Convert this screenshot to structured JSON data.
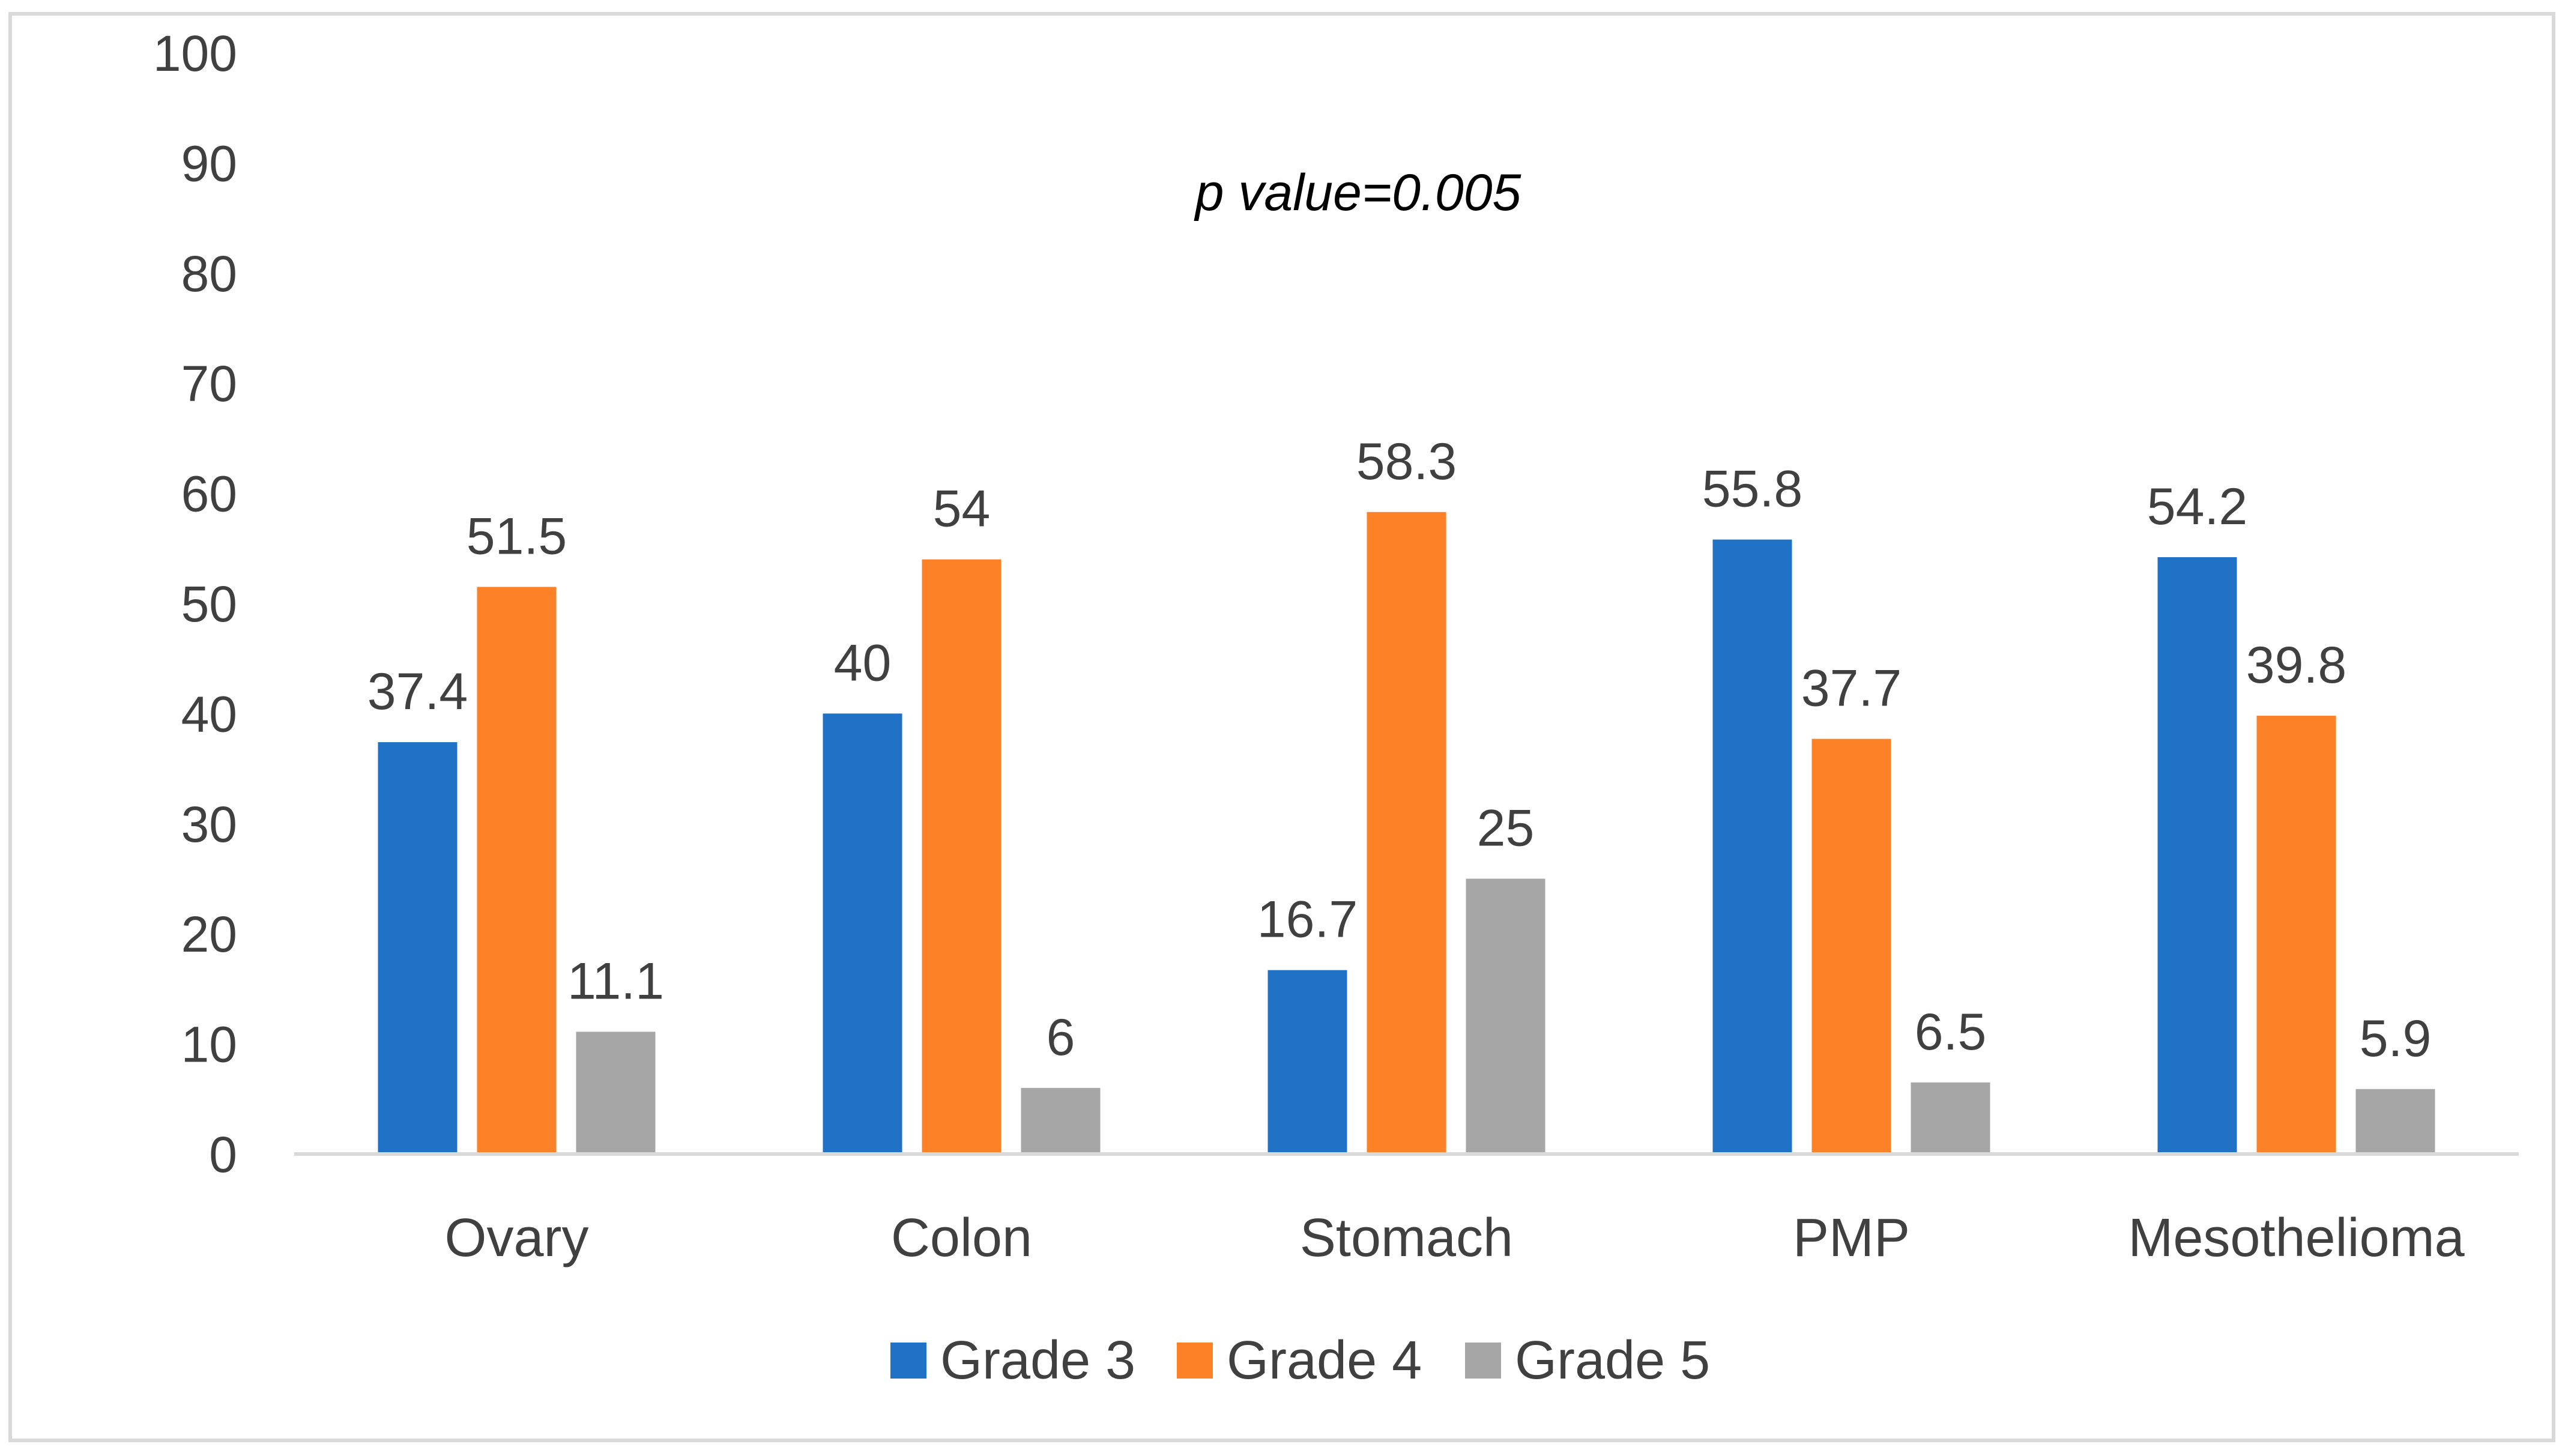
{
  "chart_data": {
    "type": "bar",
    "title": "",
    "xlabel": "",
    "ylabel": "",
    "ylim": [
      0,
      100
    ],
    "ytick_step": 10,
    "grid": false,
    "legend_position": "bottom",
    "annotation": "p value=0.005",
    "categories": [
      "Ovary",
      "Colon",
      "Stomach",
      "PMP",
      "Mesothelioma"
    ],
    "series": [
      {
        "name": "Grade 3",
        "color": "#1f72c6",
        "values": [
          37.4,
          40,
          16.7,
          55.8,
          54.2
        ],
        "labels": [
          "37.4",
          "40",
          "16.7",
          "55.8",
          "54.2"
        ]
      },
      {
        "name": "Grade 4",
        "color": "#fd8126",
        "values": [
          51.5,
          54,
          58.3,
          37.7,
          39.8
        ],
        "labels": [
          "51.5",
          "54",
          "58.3",
          "37.7",
          "39.8"
        ]
      },
      {
        "name": "Grade 5",
        "color": "#a6a6a6",
        "values": [
          11.1,
          6,
          25,
          6.5,
          5.9
        ],
        "labels": [
          "11.1",
          "6",
          "25",
          "6.5",
          "5.9"
        ]
      }
    ]
  }
}
